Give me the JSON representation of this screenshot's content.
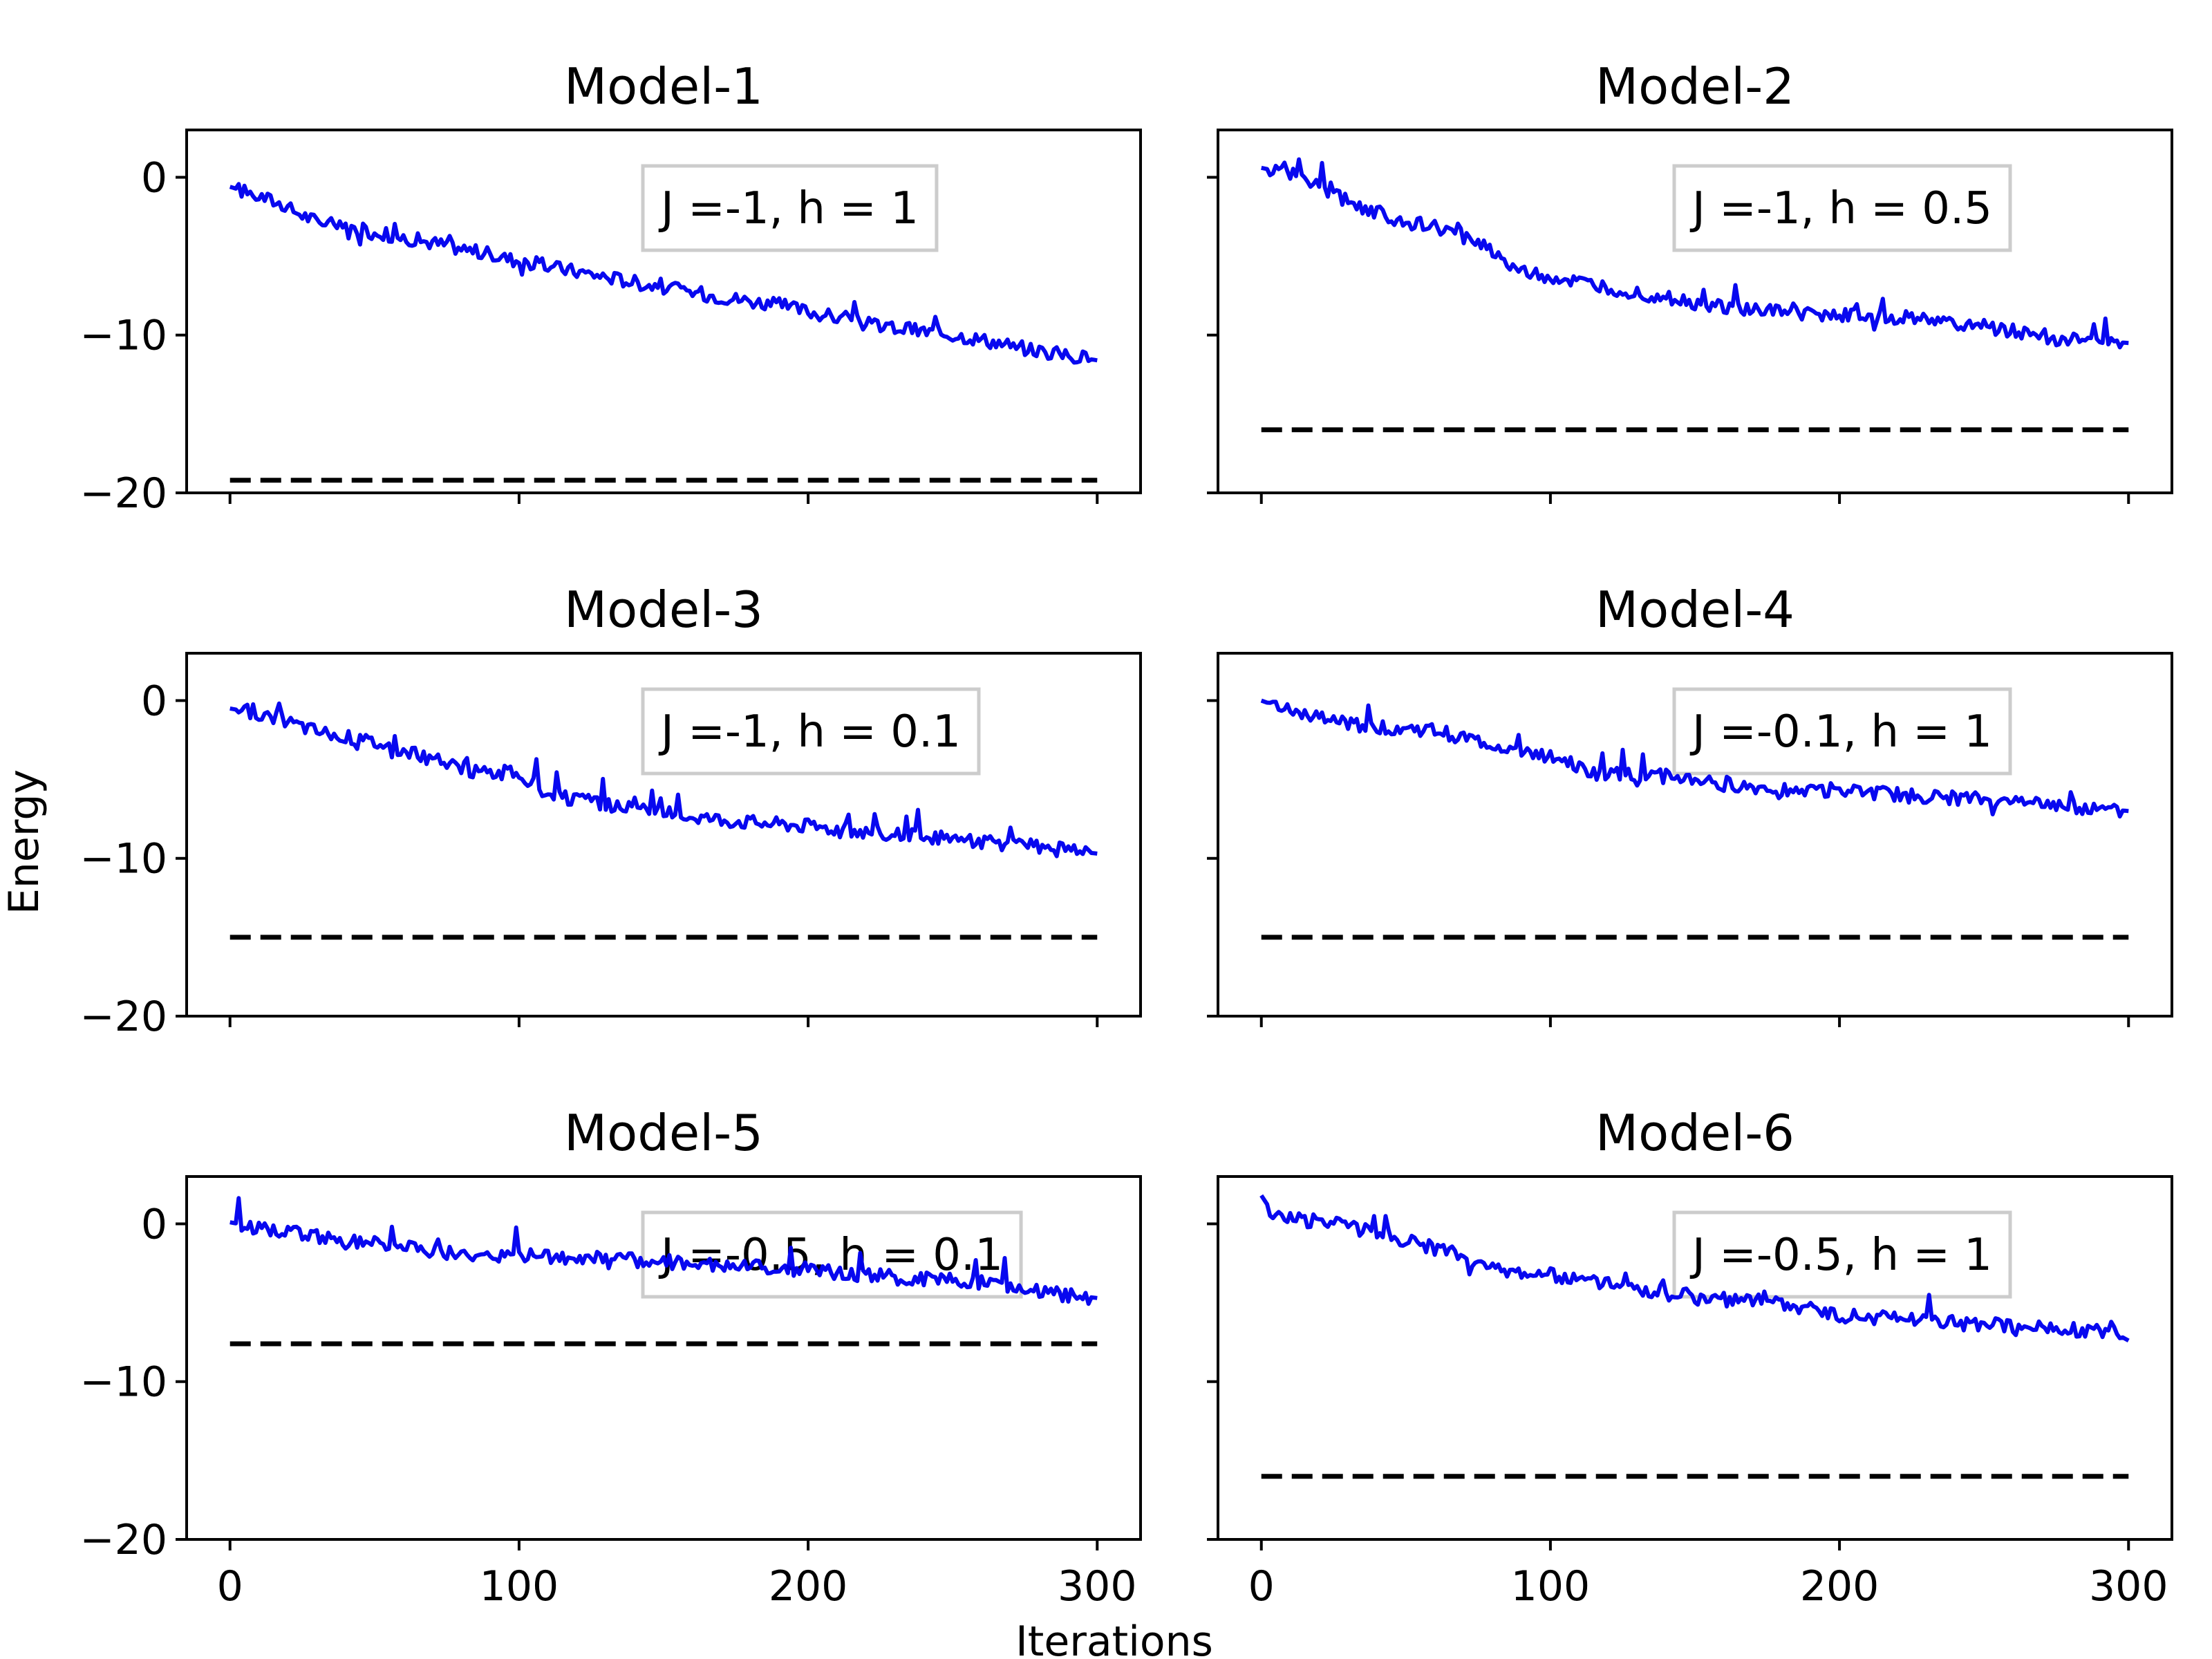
{
  "figure": {
    "xlabel": "Iterations",
    "ylabel": "Energy"
  },
  "colors": {
    "energy_line": "#0000ee",
    "reference_line": "#000000",
    "legend_border": "#cccccc"
  },
  "chart_data": [
    {
      "type": "line",
      "title": "Model-1",
      "annotation": "J =-1, h = 1",
      "xlim": [
        -15,
        315
      ],
      "ylim": [
        -20,
        3
      ],
      "xticks": [
        0,
        100,
        200,
        300
      ],
      "yticks": [
        0,
        -10,
        -20
      ],
      "xtick_labels_visible": false,
      "ytick_labels_visible": true,
      "series": [
        {
          "style": "solid",
          "points": [
            [
              0,
              -0.6
            ],
            [
              15,
              -1.5
            ],
            [
              30,
              -2.8
            ],
            [
              50,
              -3.5
            ],
            [
              75,
              -4.3
            ],
            [
              100,
              -5.3
            ],
            [
              130,
              -6.3
            ],
            [
              160,
              -7.3
            ],
            [
              190,
              -8.1
            ],
            [
              220,
              -9.3
            ],
            [
              255,
              -10.1
            ],
            [
              280,
              -11.0
            ],
            [
              300,
              -11.6
            ]
          ]
        },
        {
          "style": "dashed",
          "points": [
            [
              0,
              -19.2
            ],
            [
              300,
              -19.2
            ]
          ]
        }
      ]
    },
    {
      "type": "line",
      "title": "Model-2",
      "annotation": "J =-1, h = 0.5",
      "xlim": [
        -15,
        315
      ],
      "ylim": [
        -20,
        3
      ],
      "xticks": [
        0,
        100,
        200,
        300
      ],
      "yticks": [
        0,
        -10,
        -20
      ],
      "xtick_labels_visible": false,
      "ytick_labels_visible": false,
      "series": [
        {
          "style": "solid",
          "points": [
            [
              0,
              0.6
            ],
            [
              15,
              0.0
            ],
            [
              30,
              -1.5
            ],
            [
              45,
              -2.6
            ],
            [
              60,
              -3.2
            ],
            [
              75,
              -4.0
            ],
            [
              90,
              -6.0
            ],
            [
              110,
              -6.7
            ],
            [
              130,
              -7.3
            ],
            [
              150,
              -8.0
            ],
            [
              175,
              -8.5
            ],
            [
              200,
              -8.7
            ],
            [
              230,
              -9.0
            ],
            [
              255,
              -9.6
            ],
            [
              275,
              -10.2
            ],
            [
              300,
              -10.5
            ]
          ]
        },
        {
          "style": "dashed",
          "points": [
            [
              0,
              -16.0
            ],
            [
              300,
              -16.0
            ]
          ]
        }
      ]
    },
    {
      "type": "line",
      "title": "Model-3",
      "annotation": "J =-1, h = 0.1",
      "xlim": [
        -15,
        315
      ],
      "ylim": [
        -20,
        3
      ],
      "xticks": [
        0,
        100,
        200,
        300
      ],
      "yticks": [
        0,
        -10,
        -20
      ],
      "xtick_labels_visible": false,
      "ytick_labels_visible": true,
      "series": [
        {
          "style": "solid",
          "points": [
            [
              0,
              -0.5
            ],
            [
              15,
              -1.0
            ],
            [
              30,
              -1.9
            ],
            [
              50,
              -2.6
            ],
            [
              70,
              -3.7
            ],
            [
              85,
              -4.5
            ],
            [
              100,
              -4.6
            ],
            [
              110,
              -6.0
            ],
            [
              130,
              -6.6
            ],
            [
              150,
              -7.1
            ],
            [
              175,
              -7.6
            ],
            [
              200,
              -7.9
            ],
            [
              225,
              -8.4
            ],
            [
              250,
              -8.8
            ],
            [
              275,
              -9.2
            ],
            [
              300,
              -9.7
            ]
          ]
        },
        {
          "style": "dashed",
          "points": [
            [
              0,
              -15.0
            ],
            [
              300,
              -15.0
            ]
          ]
        }
      ]
    },
    {
      "type": "line",
      "title": "Model-4",
      "annotation": "J =-0.1, h = 1",
      "xlim": [
        -15,
        315
      ],
      "ylim": [
        -20,
        3
      ],
      "xticks": [
        0,
        100,
        200,
        300
      ],
      "yticks": [
        0,
        -10,
        -20
      ],
      "xtick_labels_visible": false,
      "ytick_labels_visible": false,
      "series": [
        {
          "style": "solid",
          "points": [
            [
              0,
              0.0
            ],
            [
              15,
              -1.0
            ],
            [
              35,
              -1.6
            ],
            [
              60,
              -1.9
            ],
            [
              80,
              -2.8
            ],
            [
              100,
              -3.6
            ],
            [
              115,
              -4.6
            ],
            [
              140,
              -4.8
            ],
            [
              155,
              -5.1
            ],
            [
              170,
              -5.5
            ],
            [
              200,
              -5.7
            ],
            [
              230,
              -6.1
            ],
            [
              260,
              -6.4
            ],
            [
              300,
              -7.0
            ]
          ]
        },
        {
          "style": "dashed",
          "points": [
            [
              0,
              -15.0
            ],
            [
              300,
              -15.0
            ]
          ]
        }
      ]
    },
    {
      "type": "line",
      "title": "Model-5",
      "annotation": "J =-0.5, h = 0.1",
      "xlim": [
        -15,
        315
      ],
      "ylim": [
        -20,
        3
      ],
      "xticks": [
        0,
        100,
        200,
        300
      ],
      "yticks": [
        0,
        -10,
        -20
      ],
      "xtick_labels": [
        "0",
        "100",
        "200",
        "300"
      ],
      "xtick_labels_visible": true,
      "ytick_labels_visible": true,
      "series": [
        {
          "style": "solid",
          "points": [
            [
              0,
              0.1
            ],
            [
              20,
              -0.6
            ],
            [
              50,
              -1.2
            ],
            [
              80,
              -1.9
            ],
            [
              110,
              -2.1
            ],
            [
              140,
              -2.3
            ],
            [
              160,
              -2.5
            ],
            [
              200,
              -2.9
            ],
            [
              230,
              -3.4
            ],
            [
              260,
              -3.7
            ],
            [
              285,
              -4.4
            ],
            [
              300,
              -4.7
            ]
          ]
        },
        {
          "style": "dashed",
          "points": [
            [
              0,
              -7.6
            ],
            [
              300,
              -7.6
            ]
          ]
        }
      ]
    },
    {
      "type": "line",
      "title": "Model-6",
      "annotation": "J =-0.5, h = 1",
      "xlim": [
        -15,
        315
      ],
      "ylim": [
        -20,
        3
      ],
      "xticks": [
        0,
        100,
        200,
        300
      ],
      "yticks": [
        0,
        -10,
        -20
      ],
      "xtick_labels": [
        "0",
        "100",
        "200",
        "300"
      ],
      "xtick_labels_visible": true,
      "ytick_labels_visible": false,
      "series": [
        {
          "style": "solid",
          "points": [
            [
              0,
              1.8
            ],
            [
              5,
              0.4
            ],
            [
              25,
              0.1
            ],
            [
              45,
              -0.8
            ],
            [
              65,
              -1.8
            ],
            [
              80,
              -2.8
            ],
            [
              100,
              -3.2
            ],
            [
              125,
              -3.9
            ],
            [
              150,
              -4.7
            ],
            [
              175,
              -4.9
            ],
            [
              200,
              -5.8
            ],
            [
              225,
              -6.1
            ],
            [
              250,
              -6.4
            ],
            [
              275,
              -6.6
            ],
            [
              295,
              -6.9
            ],
            [
              300,
              -7.4
            ]
          ]
        },
        {
          "style": "dashed",
          "points": [
            [
              0,
              -16.0
            ],
            [
              300,
              -16.0
            ]
          ]
        }
      ]
    }
  ],
  "ytick_labels": [
    "0",
    "−10",
    "−20"
  ]
}
